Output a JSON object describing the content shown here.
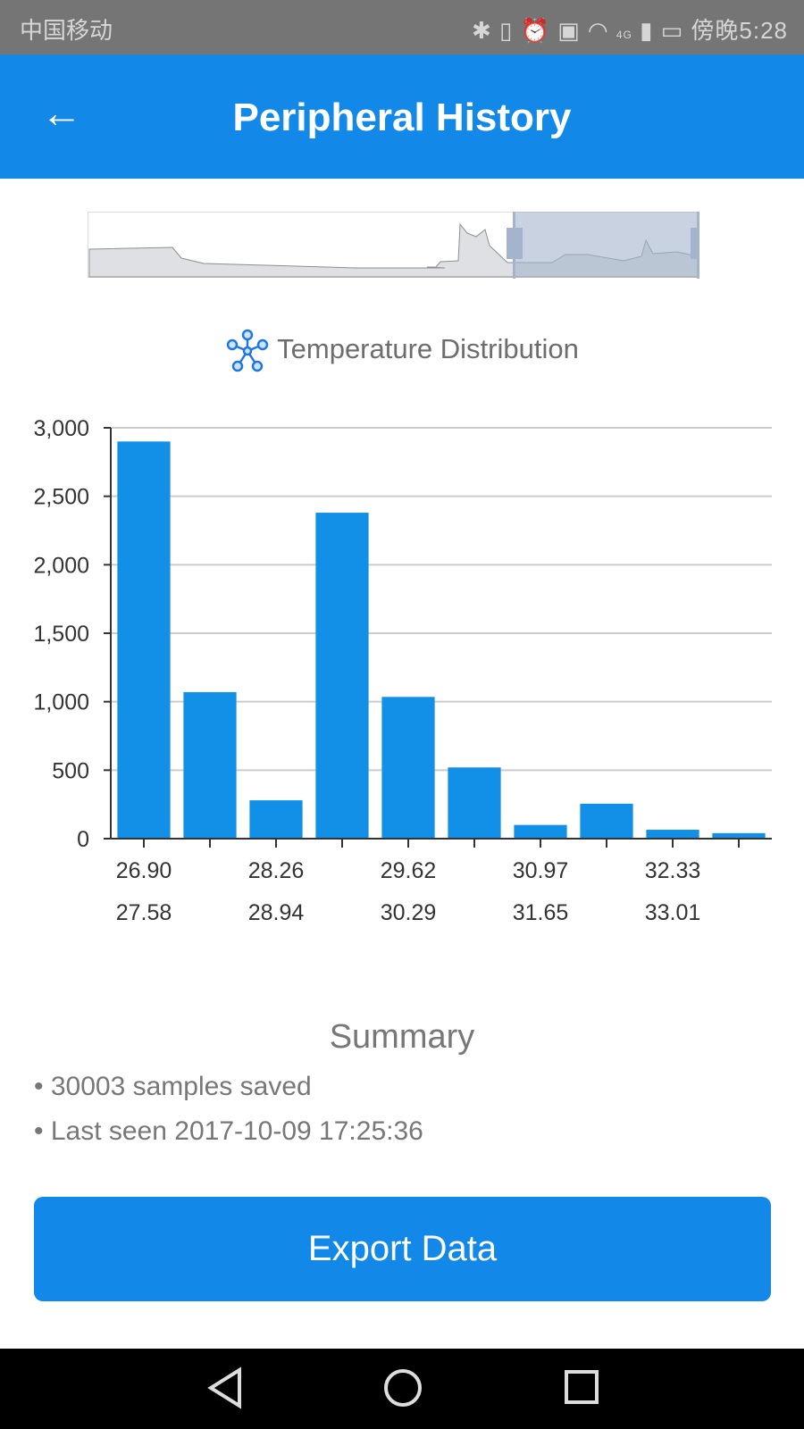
{
  "status_bar": {
    "carrier": "中国移动",
    "time": "傍晚5:28",
    "network": "4G"
  },
  "app_bar": {
    "title": "Peripheral History"
  },
  "chart_title": "Temperature Distribution",
  "chart_data": {
    "type": "bar",
    "title": "Temperature Distribution",
    "categories": [
      "26.90",
      "27.58",
      "28.26",
      "28.94",
      "29.62",
      "30.29",
      "30.97",
      "31.65",
      "32.33",
      "33.01"
    ],
    "values": [
      2900,
      1070,
      280,
      2380,
      1035,
      520,
      100,
      255,
      65,
      40
    ],
    "ylim": [
      0,
      3000
    ],
    "yticks": [
      "0",
      "500",
      "1,000",
      "1,500",
      "2,000",
      "2,500",
      "3,000"
    ],
    "grid": true,
    "color": "#1290e8"
  },
  "summary": {
    "heading": "Summary",
    "items": [
      "• 30003 samples saved",
      "• Last seen 2017-10-09 17:25:36"
    ]
  },
  "export_button": "Export Data"
}
